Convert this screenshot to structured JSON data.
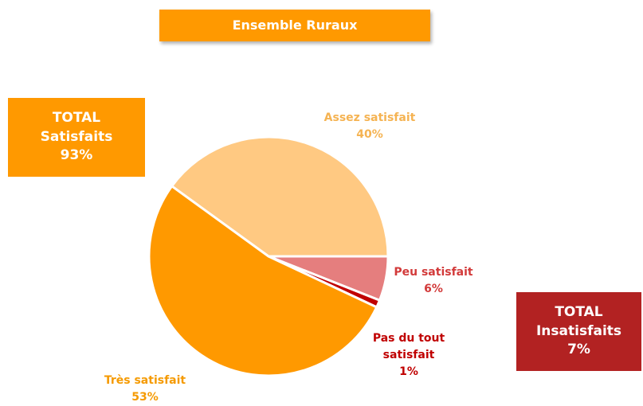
{
  "chart_data": {
    "type": "pie",
    "title": "Ensemble Ruraux",
    "categories": [
      "Assez satisfait",
      "Peu satisfait",
      "Pas du tout satisfait",
      "Très satisfait"
    ],
    "values": [
      40,
      6,
      1,
      53
    ],
    "value_labels": [
      "40%",
      "6%",
      "1%",
      "53%"
    ],
    "colors": [
      "#ffc982",
      "#e57e7e",
      "#c00000",
      "#ff9900"
    ],
    "label_colors": [
      "#f5b352",
      "#d23a3a",
      "#c00000",
      "#f59a00"
    ],
    "totals": [
      {
        "title": "TOTAL",
        "name": "Satisfaits",
        "value": 93,
        "value_label": "93%",
        "color": "#ff9900"
      },
      {
        "title": "TOTAL",
        "name": "Insatisfaits",
        "value": 7,
        "value_label": "7%",
        "color": "#b22222"
      }
    ]
  }
}
